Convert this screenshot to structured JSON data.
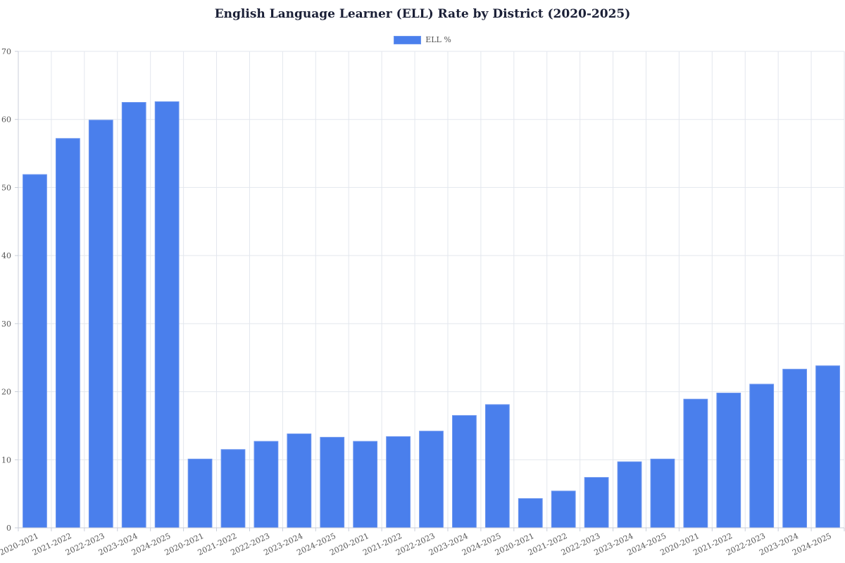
{
  "chart_data": {
    "type": "bar",
    "title": "English Language Learner (ELL) Rate by District (2020-2025)",
    "xlabel": "",
    "ylabel": "",
    "ylim": [
      0,
      70
    ],
    "yticks": [
      0,
      10,
      20,
      30,
      40,
      50,
      60,
      70
    ],
    "grid": true,
    "legend_position": "top",
    "categories": [
      "2020-2021",
      "2021-2022",
      "2022-2023",
      "2023-2024",
      "2024-2025",
      "2020-2021",
      "2021-2022",
      "2022-2023",
      "2023-2024",
      "2024-2025",
      "2020-2021",
      "2021-2022",
      "2022-2023",
      "2023-2024",
      "2024-2025",
      "2020-2021",
      "2021-2022",
      "2022-2023",
      "2023-2024",
      "2024-2025",
      "2020-2021",
      "2021-2022",
      "2022-2023",
      "2023-2024",
      "2024-2025"
    ],
    "series": [
      {
        "name": "ELL %",
        "color": "#4a7fec",
        "values": [
          51.9,
          57.2,
          59.9,
          62.5,
          62.6,
          10.1,
          11.5,
          12.7,
          13.8,
          13.3,
          12.7,
          13.4,
          14.2,
          16.5,
          18.1,
          4.3,
          5.4,
          7.4,
          9.7,
          10.1,
          18.9,
          19.8,
          21.1,
          23.3,
          23.8
        ]
      }
    ]
  },
  "colors": {
    "bar": "#4a7fec",
    "bar_border": "#6b95ef",
    "grid": "#e3e7ee",
    "axis": "#c9ced8",
    "title": "#1a1f36"
  }
}
